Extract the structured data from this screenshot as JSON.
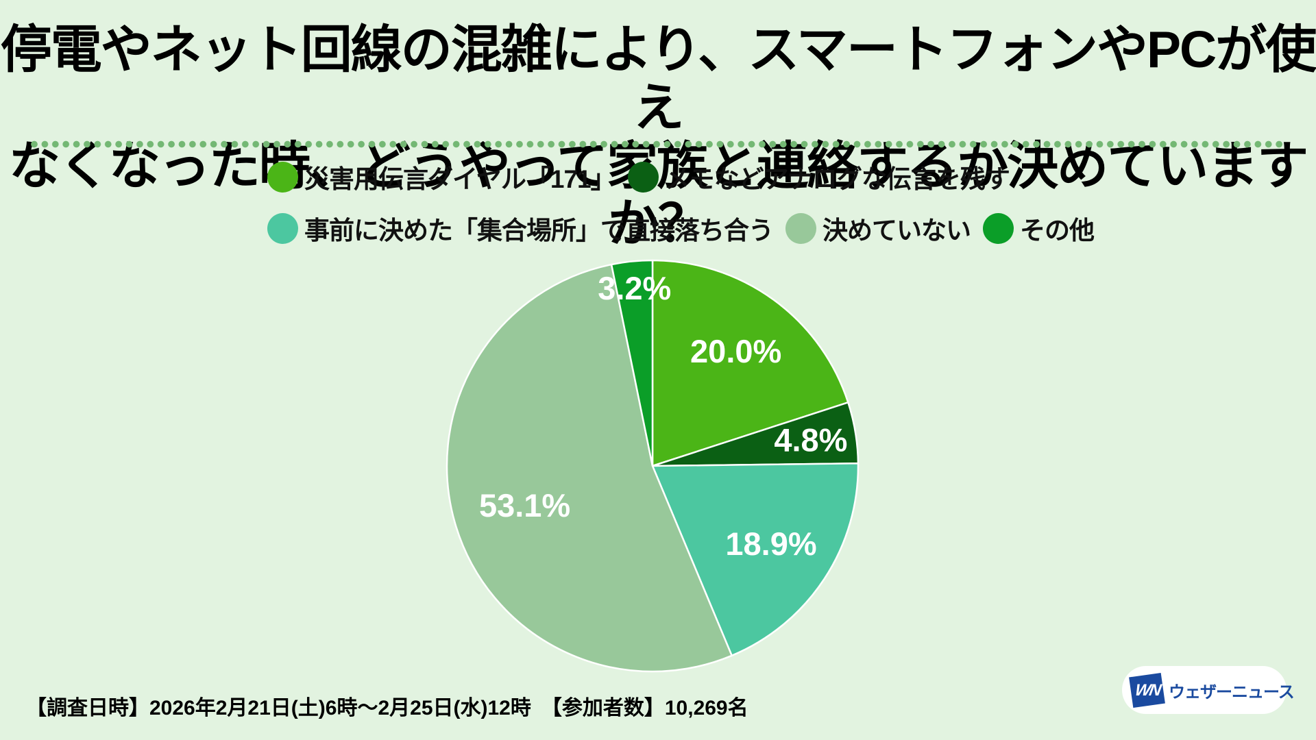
{
  "page": {
    "background": "#e2f3e0"
  },
  "title": {
    "text": "停電やネット回線の混雑により、スマートフォンやPCが使え\nなくなった時、どうやって家族と連絡するか決めていますか？"
  },
  "separator": {
    "dot_color": "#74b874"
  },
  "chart_data": {
    "type": "pie",
    "categories": [
      "災害用伝言ダイヤル「171」",
      "メモなどアナログな伝言を残す",
      "事前に決めた「集合場所」で直接落ち合う",
      "決めていない",
      "その他"
    ],
    "values": [
      20.0,
      4.8,
      18.9,
      53.1,
      3.2
    ],
    "value_labels": [
      "20.0%",
      "4.8%",
      "18.9%",
      "53.1%",
      "3.2%"
    ],
    "colors": [
      "#4bb517",
      "#0b6014",
      "#4cc7a0",
      "#98c89a",
      "#0b9e28"
    ],
    "start_angle_deg": 0,
    "direction": "clockwise",
    "slice_border_color": "#ffffff",
    "label_color": "#ffffff",
    "legend_position": "top",
    "legend_rows": [
      [
        0,
        1
      ],
      [
        2,
        3,
        4
      ]
    ]
  },
  "footer": {
    "survey_info": "【調査日時】2026年2月21日(土)6時～2月25日(水)12時　【参加者数】10,269名"
  },
  "logo": {
    "mark": "WN",
    "name": "ウェザーニュース",
    "color": "#1a4a9f",
    "pill_background": "#ffffff"
  }
}
